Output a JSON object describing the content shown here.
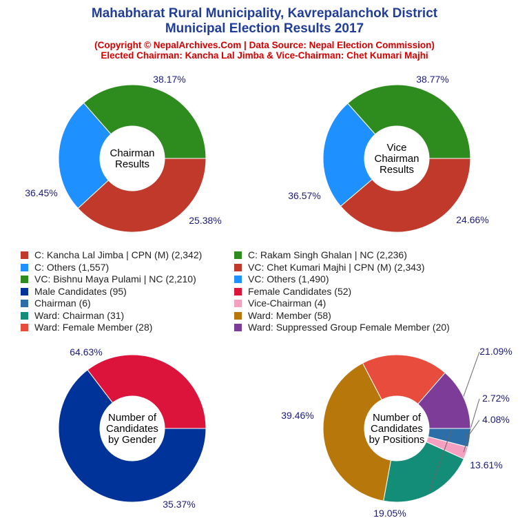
{
  "title_line1": "Mahabharat Rural Municipality, Kavrepalanchok District",
  "title_line2": "Municipal Election Results 2017",
  "subtitle_line1": "(Copyright © NepalArchives.Com | Data Source: Nepal Election Commission)",
  "subtitle_line2": "Elected Chairman: Kancha Lal Jimba & Vice-Chairman: Chet Kumari Majhi",
  "legend": [
    {
      "label": "C: Kancha Lal Jimba | CPN (M) (2,342)",
      "color": "#c0392b"
    },
    {
      "label": "C: Rakam Singh Ghalan | NC (2,236)",
      "color": "#2e8b1e"
    },
    {
      "label": "C: Others (1,557)",
      "color": "#1e90ff"
    },
    {
      "label": "VC: Chet Kumari Majhi | CPN (M) (2,343)",
      "color": "#c0392b"
    },
    {
      "label": "VC: Bishnu Maya Pulami | NC (2,210)",
      "color": "#2e8b1e"
    },
    {
      "label": "VC: Others (1,490)",
      "color": "#1e90ff"
    },
    {
      "label": "Male Candidates (95)",
      "color": "#003399"
    },
    {
      "label": "Female Candidates (52)",
      "color": "#dc143c"
    },
    {
      "label": "Chairman (6)",
      "color": "#2c6fa8"
    },
    {
      "label": "Vice-Chairman (4)",
      "color": "#f4a0c0"
    },
    {
      "label": "Ward: Chairman (31)",
      "color": "#138c78"
    },
    {
      "label": "Ward: Member (58)",
      "color": "#b8770b"
    },
    {
      "label": "Ward: Female Member (28)",
      "color": "#e74c3c"
    },
    {
      "label": "Ward: Suppressed Group Female Member (20)",
      "color": "#7d3c98"
    }
  ],
  "chart_data": [
    {
      "type": "pie",
      "center_label": [
        "Chairman",
        "Results"
      ],
      "slices": [
        {
          "name": "C: Kancha Lal Jimba | CPN (M)",
          "value": 2342,
          "pct_label": "38.17%",
          "color": "#c0392b"
        },
        {
          "name": "C: Others",
          "value": 1557,
          "pct_label": "25.38%",
          "color": "#1e90ff"
        },
        {
          "name": "C: Rakam Singh Ghalan | NC",
          "value": 2236,
          "pct_label": "36.45%",
          "color": "#2e8b1e"
        }
      ]
    },
    {
      "type": "pie",
      "center_label": [
        "Vice",
        "Chairman",
        "Results"
      ],
      "slices": [
        {
          "name": "VC: Chet Kumari Majhi | CPN (M)",
          "value": 2343,
          "pct_label": "38.77%",
          "color": "#c0392b"
        },
        {
          "name": "VC: Others",
          "value": 1490,
          "pct_label": "24.66%",
          "color": "#1e90ff"
        },
        {
          "name": "VC: Bishnu Maya Pulami | NC",
          "value": 2210,
          "pct_label": "36.57%",
          "color": "#2e8b1e"
        }
      ]
    },
    {
      "type": "pie",
      "center_label": [
        "Number of",
        "Candidates",
        "by Gender"
      ],
      "slices": [
        {
          "name": "Male Candidates",
          "value": 95,
          "pct_label": "64.63%",
          "color": "#003399"
        },
        {
          "name": "Female Candidates",
          "value": 52,
          "pct_label": "35.37%",
          "color": "#dc143c"
        }
      ]
    },
    {
      "type": "pie",
      "center_label": [
        "Number of",
        "Candidates",
        "by Positions"
      ],
      "slices": [
        {
          "name": "Chairman",
          "value": 6,
          "pct_label": "4.08%",
          "color": "#2c6fa8"
        },
        {
          "name": "Vice-Chairman",
          "value": 4,
          "pct_label": "2.72%",
          "color": "#f4a0c0"
        },
        {
          "name": "Ward: Chairman",
          "value": 31,
          "pct_label": "21.09%",
          "color": "#138c78"
        },
        {
          "name": "Ward: Member",
          "value": 58,
          "pct_label": "39.46%",
          "color": "#b8770b"
        },
        {
          "name": "Ward: Female Member",
          "value": 28,
          "pct_label": "19.05%",
          "color": "#e74c3c"
        },
        {
          "name": "Ward: Suppressed Group Female Member",
          "value": 20,
          "pct_label": "13.61%",
          "color": "#7d3c98"
        }
      ]
    }
  ]
}
